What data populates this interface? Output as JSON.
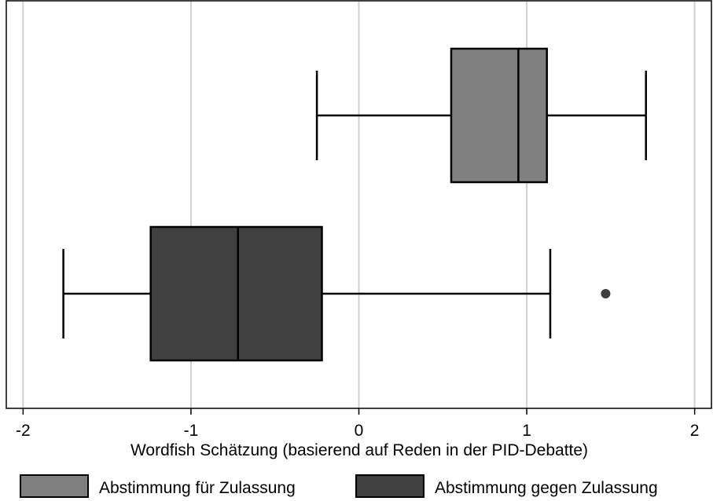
{
  "chart_data": {
    "type": "boxplot",
    "orientation": "horizontal",
    "xlabel": "Wordfish Schätzung (basierend auf Reden in der PID-Debatte)",
    "xlim": [
      -2.1,
      2.1
    ],
    "xticks": [
      -2,
      -1,
      0,
      1,
      2
    ],
    "grid": true,
    "legend_position": "bottom",
    "series": [
      {
        "name": "Abstimmung für Zulassung",
        "color": "#808080",
        "whisker_low": -0.25,
        "q1": 0.55,
        "median": 0.95,
        "q3": 1.12,
        "whisker_high": 1.71,
        "outliers": []
      },
      {
        "name": "Abstimmung gegen Zulassung",
        "color": "#404040",
        "whisker_low": -1.76,
        "q1": -1.24,
        "median": -0.72,
        "q3": -0.22,
        "whisker_high": 1.14,
        "outliers": [
          1.47
        ]
      }
    ]
  }
}
